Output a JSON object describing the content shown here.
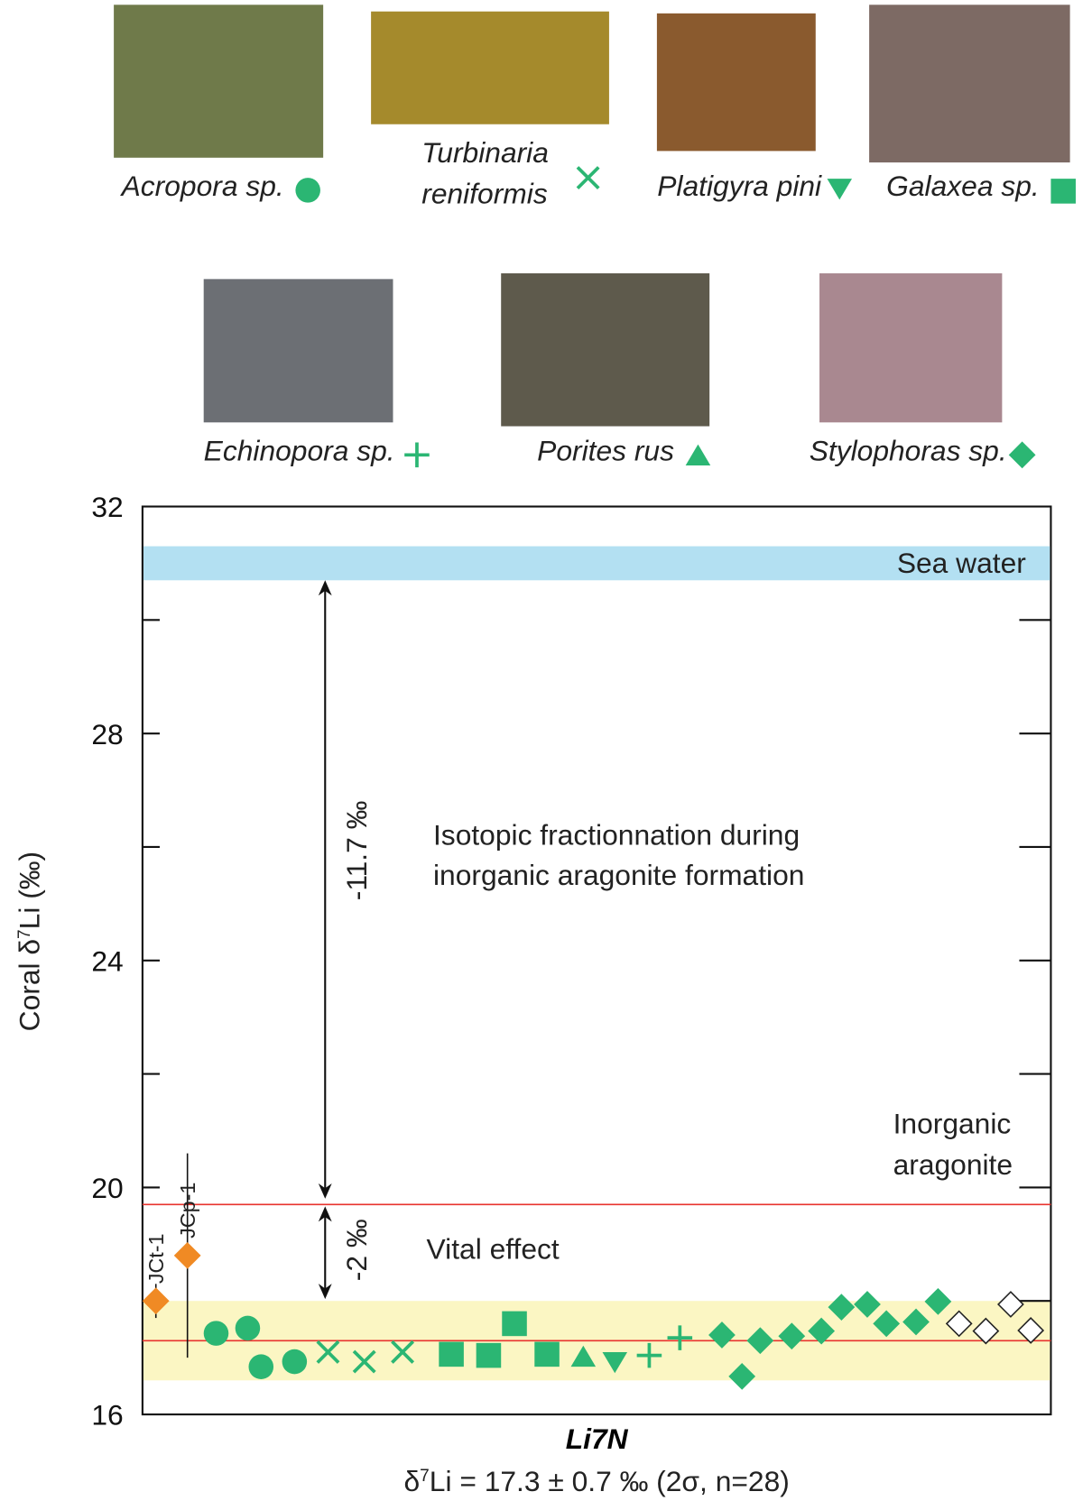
{
  "chart_data": {
    "type": "scatter",
    "ylabel": [
      "Coral δ",
      "7",
      "Li (‰)"
    ],
    "xlabel": "Li7N",
    "subtitle": [
      "δ",
      "7",
      "Li = 17.3 ± 0.7 ‰ (2σ, n=28)"
    ],
    "ylim": [
      16,
      32
    ],
    "yticks": [
      16,
      20,
      24,
      28,
      32
    ],
    "yminor": [
      18,
      22,
      26,
      30
    ],
    "sea_water": {
      "label": "Sea water",
      "range": [
        30.7,
        31.3
      ],
      "color": "#b3e0f2"
    },
    "inorganic_aragonite": {
      "label": [
        "Inorganic",
        "aragonite"
      ],
      "value": 19.7,
      "color": "#e8332e"
    },
    "mean": {
      "value": 17.3,
      "range": [
        16.6,
        18.0
      ],
      "line_color": "#e8332e",
      "band_color": "#fbf6c3"
    },
    "annotations": {
      "fractionation": [
        "Isotopic fractionnation during",
        "inorganic aragonite formation"
      ],
      "fractionation_delta": "-11.7 ‰",
      "vital": "Vital effect",
      "vital_delta": "-2 ‰"
    },
    "standards": [
      {
        "name": "JCt-1",
        "value": 18.0,
        "error": 0.3,
        "color": "#f08a24"
      },
      {
        "name": "JCp-1",
        "value": 18.8,
        "error": 1.8,
        "color": "#f08a24"
      }
    ],
    "series": [
      {
        "name": "Acropora sp.",
        "marker": "circle",
        "color": "#2bb673",
        "values": [
          17.43,
          17.52,
          16.84,
          16.93
        ]
      },
      {
        "name": "Turbinaria reniformis",
        "marker": "cross",
        "color": "#2bb673",
        "values": [
          17.1,
          16.93,
          17.1
        ]
      },
      {
        "name": "Galaxea sp.",
        "marker": "square",
        "color": "#2bb673",
        "values": [
          17.06,
          17.04,
          17.6,
          17.06
        ]
      },
      {
        "name": "Porites rus",
        "marker": "triangle-up",
        "color": "#2bb673",
        "values": [
          17.01
        ]
      },
      {
        "name": "Platigyra pini",
        "marker": "triangle-down",
        "color": "#2bb673",
        "values": [
          16.93
        ]
      },
      {
        "name": "Echinopora sp.",
        "marker": "plus",
        "color": "#2bb673",
        "values": [
          17.04,
          17.35
        ]
      },
      {
        "name": "Stylophoras sp.",
        "marker": "diamond",
        "color": "#2bb673",
        "values": [
          17.4,
          16.67,
          17.3,
          17.38,
          17.47,
          17.89,
          17.94,
          17.6,
          17.63,
          17.99
        ]
      },
      {
        "marker": "diamond",
        "color": "#ffffff",
        "values": [
          17.6,
          17.47,
          17.94,
          17.48
        ]
      }
    ]
  }
}
